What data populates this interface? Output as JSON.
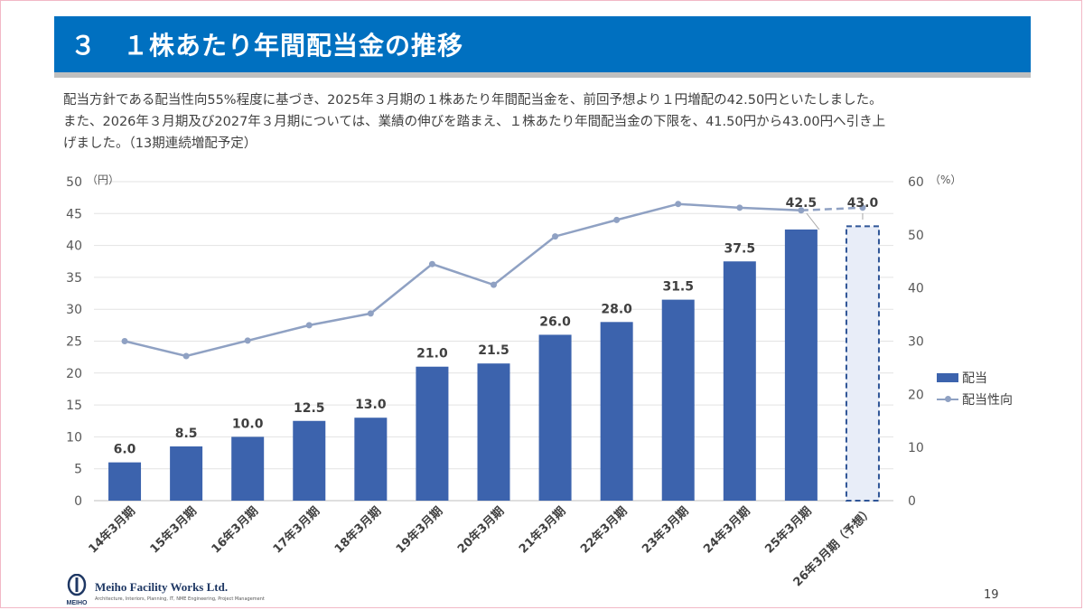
{
  "header": {
    "title": "３　１株あたり年間配当金の推移"
  },
  "description": [
    "配当方針である配当性向55%程度に基づき、2025年３月期の１株あたり年間配当金を、前回予想より１円増配の42.50円といたしました。",
    "また、2026年３月期及び2027年３月期については、業績の伸びを踏まえ、１株あたり年間配当金の下限を、41.50円から43.00円へ引き上",
    "げました。（13期連続増配予定）"
  ],
  "chart_data": {
    "type": "bar",
    "categories": [
      "14年3月期",
      "15年3月期",
      "16年3月期",
      "17年3月期",
      "18年3月期",
      "19年3月期",
      "20年3月期",
      "21年3月期",
      "22年3月期",
      "23年3月期",
      "24年3月期",
      "25年3月期",
      "26年3月期（予想）"
    ],
    "series": [
      {
        "name": "配当",
        "type": "bar",
        "axis": "left",
        "values": [
          6.0,
          8.5,
          10.0,
          12.5,
          13.0,
          21.0,
          21.5,
          26.0,
          28.0,
          31.5,
          37.5,
          42.5,
          43.0
        ],
        "labels": [
          "6.0",
          "8.5",
          "10.0",
          "12.5",
          "13.0",
          "21.0",
          "21.5",
          "26.0",
          "28.0",
          "31.5",
          "37.5",
          "42.5",
          "43.0"
        ],
        "forecast_index": 12
      },
      {
        "name": "配当性向",
        "type": "line",
        "axis": "right",
        "values": [
          30,
          27.2,
          30.1,
          33,
          35.2,
          44.5,
          40.6,
          49.7,
          52.8,
          55.8,
          55.1,
          54.6,
          55.1
        ]
      }
    ],
    "y_left": {
      "unit": "（円）",
      "ylim": [
        0,
        50
      ],
      "ticks": [
        "0",
        "5",
        "10",
        "15",
        "20",
        "25",
        "30",
        "35",
        "40",
        "45",
        "50"
      ]
    },
    "y_right": {
      "unit": "（%）",
      "ylim": [
        0,
        60
      ],
      "ticks": [
        "0",
        "10",
        "20",
        "30",
        "40",
        "50",
        "60"
      ]
    },
    "grid": "horizontal",
    "legend_position": "right",
    "colors": {
      "bar": "#3c63ad",
      "line": "#8fa1c3",
      "forecast_fill": "#e8edf8",
      "forecast_border": "#2f5597"
    }
  },
  "footer": {
    "company": "Meiho Facility Works Ltd.",
    "tagline": "Architecture, Interiors, Planning, IT, NME Engineering, Project Management",
    "logo_text": "MEIHO",
    "page": "19"
  }
}
